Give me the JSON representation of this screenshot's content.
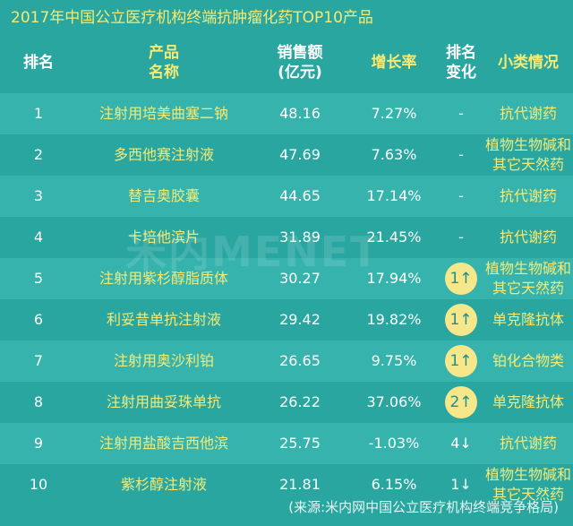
{
  "title": "2017年中国公立医疗机构终端抗肿瘤化药TOP10产品",
  "headers": {
    "rank": "排名",
    "name_line1": "产品",
    "name_line2": "名称",
    "sales_line1": "销售额",
    "sales_line2": "(亿元)",
    "growth": "增长率",
    "change_line1": "排名",
    "change_line2": "变化",
    "type": "小类情况"
  },
  "rows": [
    {
      "rank": "1",
      "name": "注射用培美曲塞二钠",
      "sales": "48.16",
      "growth": "7.27%",
      "change": "-",
      "change_badge": false,
      "type_line1": "抗代谢药",
      "type_line2": ""
    },
    {
      "rank": "2",
      "name": "多西他赛注射液",
      "sales": "47.69",
      "growth": "7.63%",
      "change": "-",
      "change_badge": false,
      "type_line1": "植物生物碱和",
      "type_line2": "其它天然药"
    },
    {
      "rank": "3",
      "name": "替吉奥胶囊",
      "sales": "44.65",
      "growth": "17.14%",
      "change": "-",
      "change_badge": false,
      "type_line1": "抗代谢药",
      "type_line2": ""
    },
    {
      "rank": "4",
      "name": "卡培他滨片",
      "sales": "31.89",
      "growth": "21.45%",
      "change": "-",
      "change_badge": false,
      "type_line1": "抗代谢药",
      "type_line2": ""
    },
    {
      "rank": "5",
      "name": "注射用紫杉醇脂质体",
      "sales": "30.27",
      "growth": "17.94%",
      "change": "1↑",
      "change_badge": true,
      "type_line1": "植物生物碱和",
      "type_line2": "其它天然药"
    },
    {
      "rank": "6",
      "name": "利妥昔单抗注射液",
      "sales": "29.42",
      "growth": "19.82%",
      "change": "1↑",
      "change_badge": true,
      "type_line1": "单克隆抗体",
      "type_line2": ""
    },
    {
      "rank": "7",
      "name": "注射用奥沙利铂",
      "sales": "26.65",
      "growth": "9.75%",
      "change": "1↑",
      "change_badge": true,
      "type_line1": "铂化合物类",
      "type_line2": ""
    },
    {
      "rank": "8",
      "name": "注射用曲妥珠单抗",
      "sales": "26.22",
      "growth": "37.06%",
      "change": "2↑",
      "change_badge": true,
      "type_line1": "单克隆抗体",
      "type_line2": ""
    },
    {
      "rank": "9",
      "name": "注射用盐酸吉西他滨",
      "sales": "25.75",
      "growth": "-1.03%",
      "change": "4↓",
      "change_badge": false,
      "type_line1": "抗代谢药",
      "type_line2": ""
    },
    {
      "rank": "10",
      "name": "紫杉醇注射液",
      "sales": "21.81",
      "growth": "6.15%",
      "change": "1↓",
      "change_badge": false,
      "type_line1": "植物生物碱和",
      "type_line2": "其它天然药"
    }
  ],
  "footnote": "(来源:米内网中国公立医疗机构终端竞争格局)",
  "watermark": "米内MENET",
  "colors": {
    "background": "#2aa6a0",
    "row_alt": "#37b3ad",
    "accent_yellow": "#f4ea74",
    "badge": "#f6e78a"
  }
}
